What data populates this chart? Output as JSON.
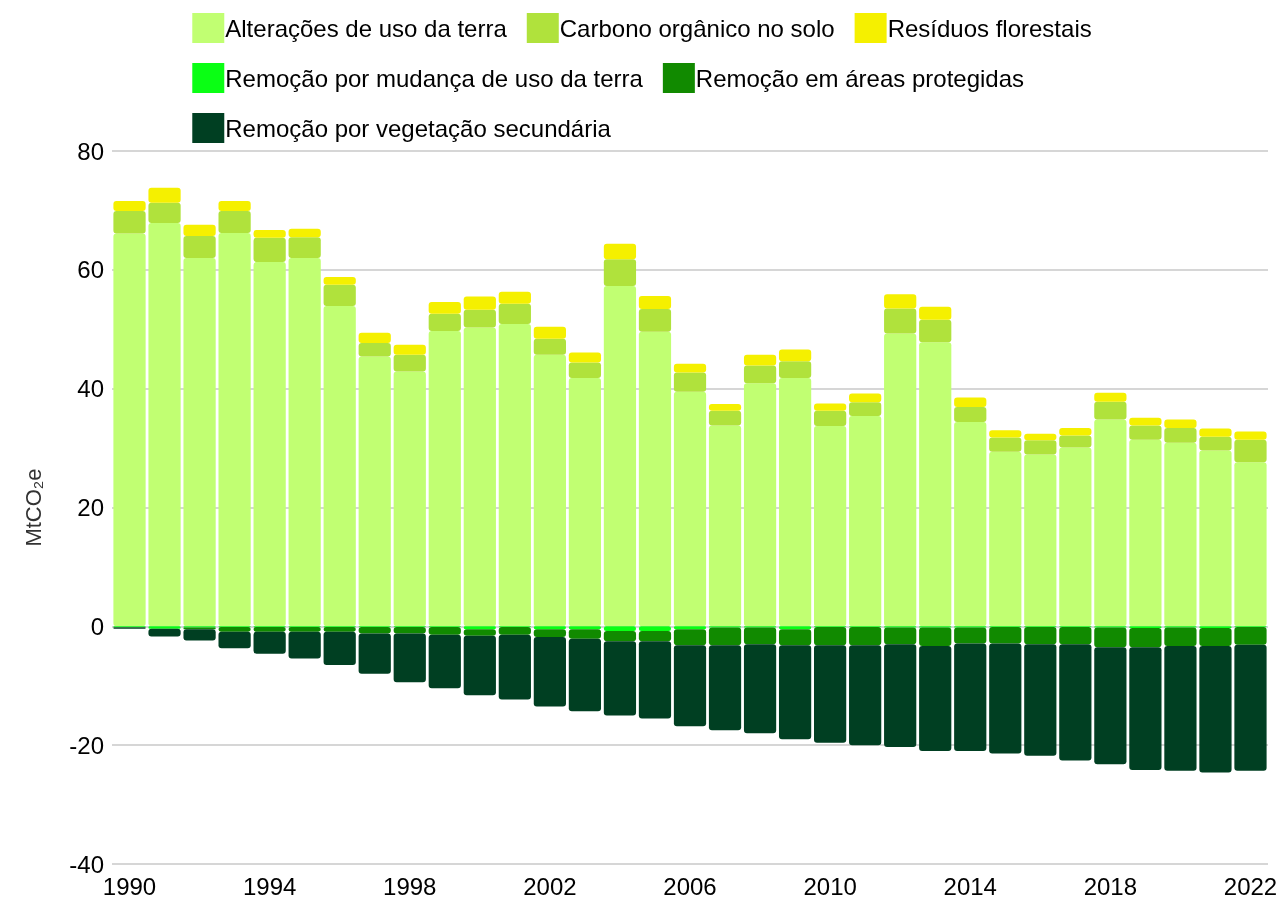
{
  "chart_data": {
    "type": "bar",
    "stacked": true,
    "ylabel": "MtCO₂e",
    "categories": [
      "1990",
      null,
      null,
      null,
      "1994",
      null,
      null,
      null,
      "1998",
      null,
      null,
      null,
      "2002",
      null,
      null,
      null,
      "2006",
      null,
      null,
      null,
      "2010",
      null,
      null,
      null,
      "2014",
      null,
      null,
      null,
      "2018",
      null,
      null,
      null,
      "2022"
    ],
    "ylim": [
      -40,
      80
    ],
    "yticks": [
      -40,
      -20,
      0,
      20,
      40,
      60,
      80
    ],
    "grid": "y",
    "legend": "top",
    "series": [
      {
        "name": "Alterações de uso da terra",
        "color": "#c1ff72",
        "values": [
          66.1,
          67.9,
          62.0,
          66.2,
          61.3,
          62.0,
          53.9,
          45.4,
          42.9,
          49.7,
          50.3,
          50.9,
          45.7,
          41.8,
          57.3,
          49.6,
          39.5,
          33.8,
          40.9,
          41.8,
          33.7,
          35.4,
          49.3,
          47.8,
          34.4,
          29.4,
          28.9,
          30.1,
          34.8,
          31.4,
          30.9,
          29.6,
          27.6
        ]
      },
      {
        "name": "Carbono orgânico no solo",
        "color": "#b0e23c",
        "values": [
          3.8,
          3.4,
          3.7,
          3.7,
          4.1,
          3.5,
          3.6,
          2.3,
          2.8,
          2.9,
          3.0,
          3.4,
          2.7,
          2.6,
          4.5,
          3.8,
          3.2,
          2.5,
          3.0,
          2.8,
          2.6,
          2.3,
          4.2,
          3.8,
          2.5,
          2.4,
          2.4,
          2.0,
          3.0,
          2.4,
          2.5,
          2.3,
          3.8
        ]
      },
      {
        "name": "Resíduos florestais",
        "color": "#f5f000",
        "values": [
          1.7,
          2.5,
          1.9,
          1.7,
          1.3,
          1.4,
          1.3,
          1.7,
          1.7,
          2.0,
          2.2,
          2.0,
          2.0,
          1.7,
          2.6,
          2.2,
          1.5,
          1.1,
          1.8,
          2.0,
          1.2,
          1.5,
          2.4,
          2.2,
          1.6,
          1.2,
          1.1,
          1.3,
          1.5,
          1.3,
          1.4,
          1.4,
          1.4
        ]
      },
      {
        "name": "Remoção por mudança de uso da terra",
        "color": "#0aff14",
        "values": [
          -0.1,
          -0.4,
          -0.2,
          -0.1,
          -0.1,
          -0.1,
          -0.1,
          -0.1,
          -0.1,
          -0.1,
          -0.5,
          -0.1,
          -0.5,
          -0.5,
          -0.8,
          -0.8,
          -0.5,
          -0.2,
          -0.2,
          -0.5,
          -0.1,
          -0.1,
          -0.2,
          -0.2,
          -0.2,
          -0.1,
          -0.1,
          -0.1,
          -0.2,
          -0.3,
          -0.2,
          -0.3,
          -0.1
        ]
      },
      {
        "name": "Remoção em áreas protegidas",
        "color": "#118a00",
        "values": [
          -0.1,
          null,
          -0.3,
          -0.8,
          -0.8,
          -0.8,
          -0.8,
          -1.1,
          -1.1,
          -1.3,
          -1.1,
          -1.3,
          -1.3,
          -1.6,
          -1.7,
          -1.7,
          -2.7,
          -3.0,
          -2.8,
          -2.7,
          -3.1,
          -3.1,
          -2.8,
          -3.1,
          -2.7,
          -2.8,
          -2.9,
          -2.9,
          -3.3,
          -3.2,
          -3.1,
          -3.0,
          -3.0
        ]
      },
      {
        "name": "Remoção por vegetação secundária",
        "color": "#003f22",
        "values": [
          -0.2,
          -1.3,
          -1.9,
          -2.8,
          -3.7,
          -4.5,
          -5.6,
          -6.8,
          -8.2,
          -9.0,
          -10.0,
          -10.9,
          -11.7,
          -12.2,
          -12.5,
          -13.0,
          -13.6,
          -14.3,
          -15.0,
          -15.8,
          -16.4,
          -16.8,
          -17.3,
          -17.7,
          -18.1,
          -18.5,
          -18.8,
          -19.6,
          -19.7,
          -20.7,
          -21.0,
          -21.3,
          -21.2
        ]
      }
    ]
  }
}
